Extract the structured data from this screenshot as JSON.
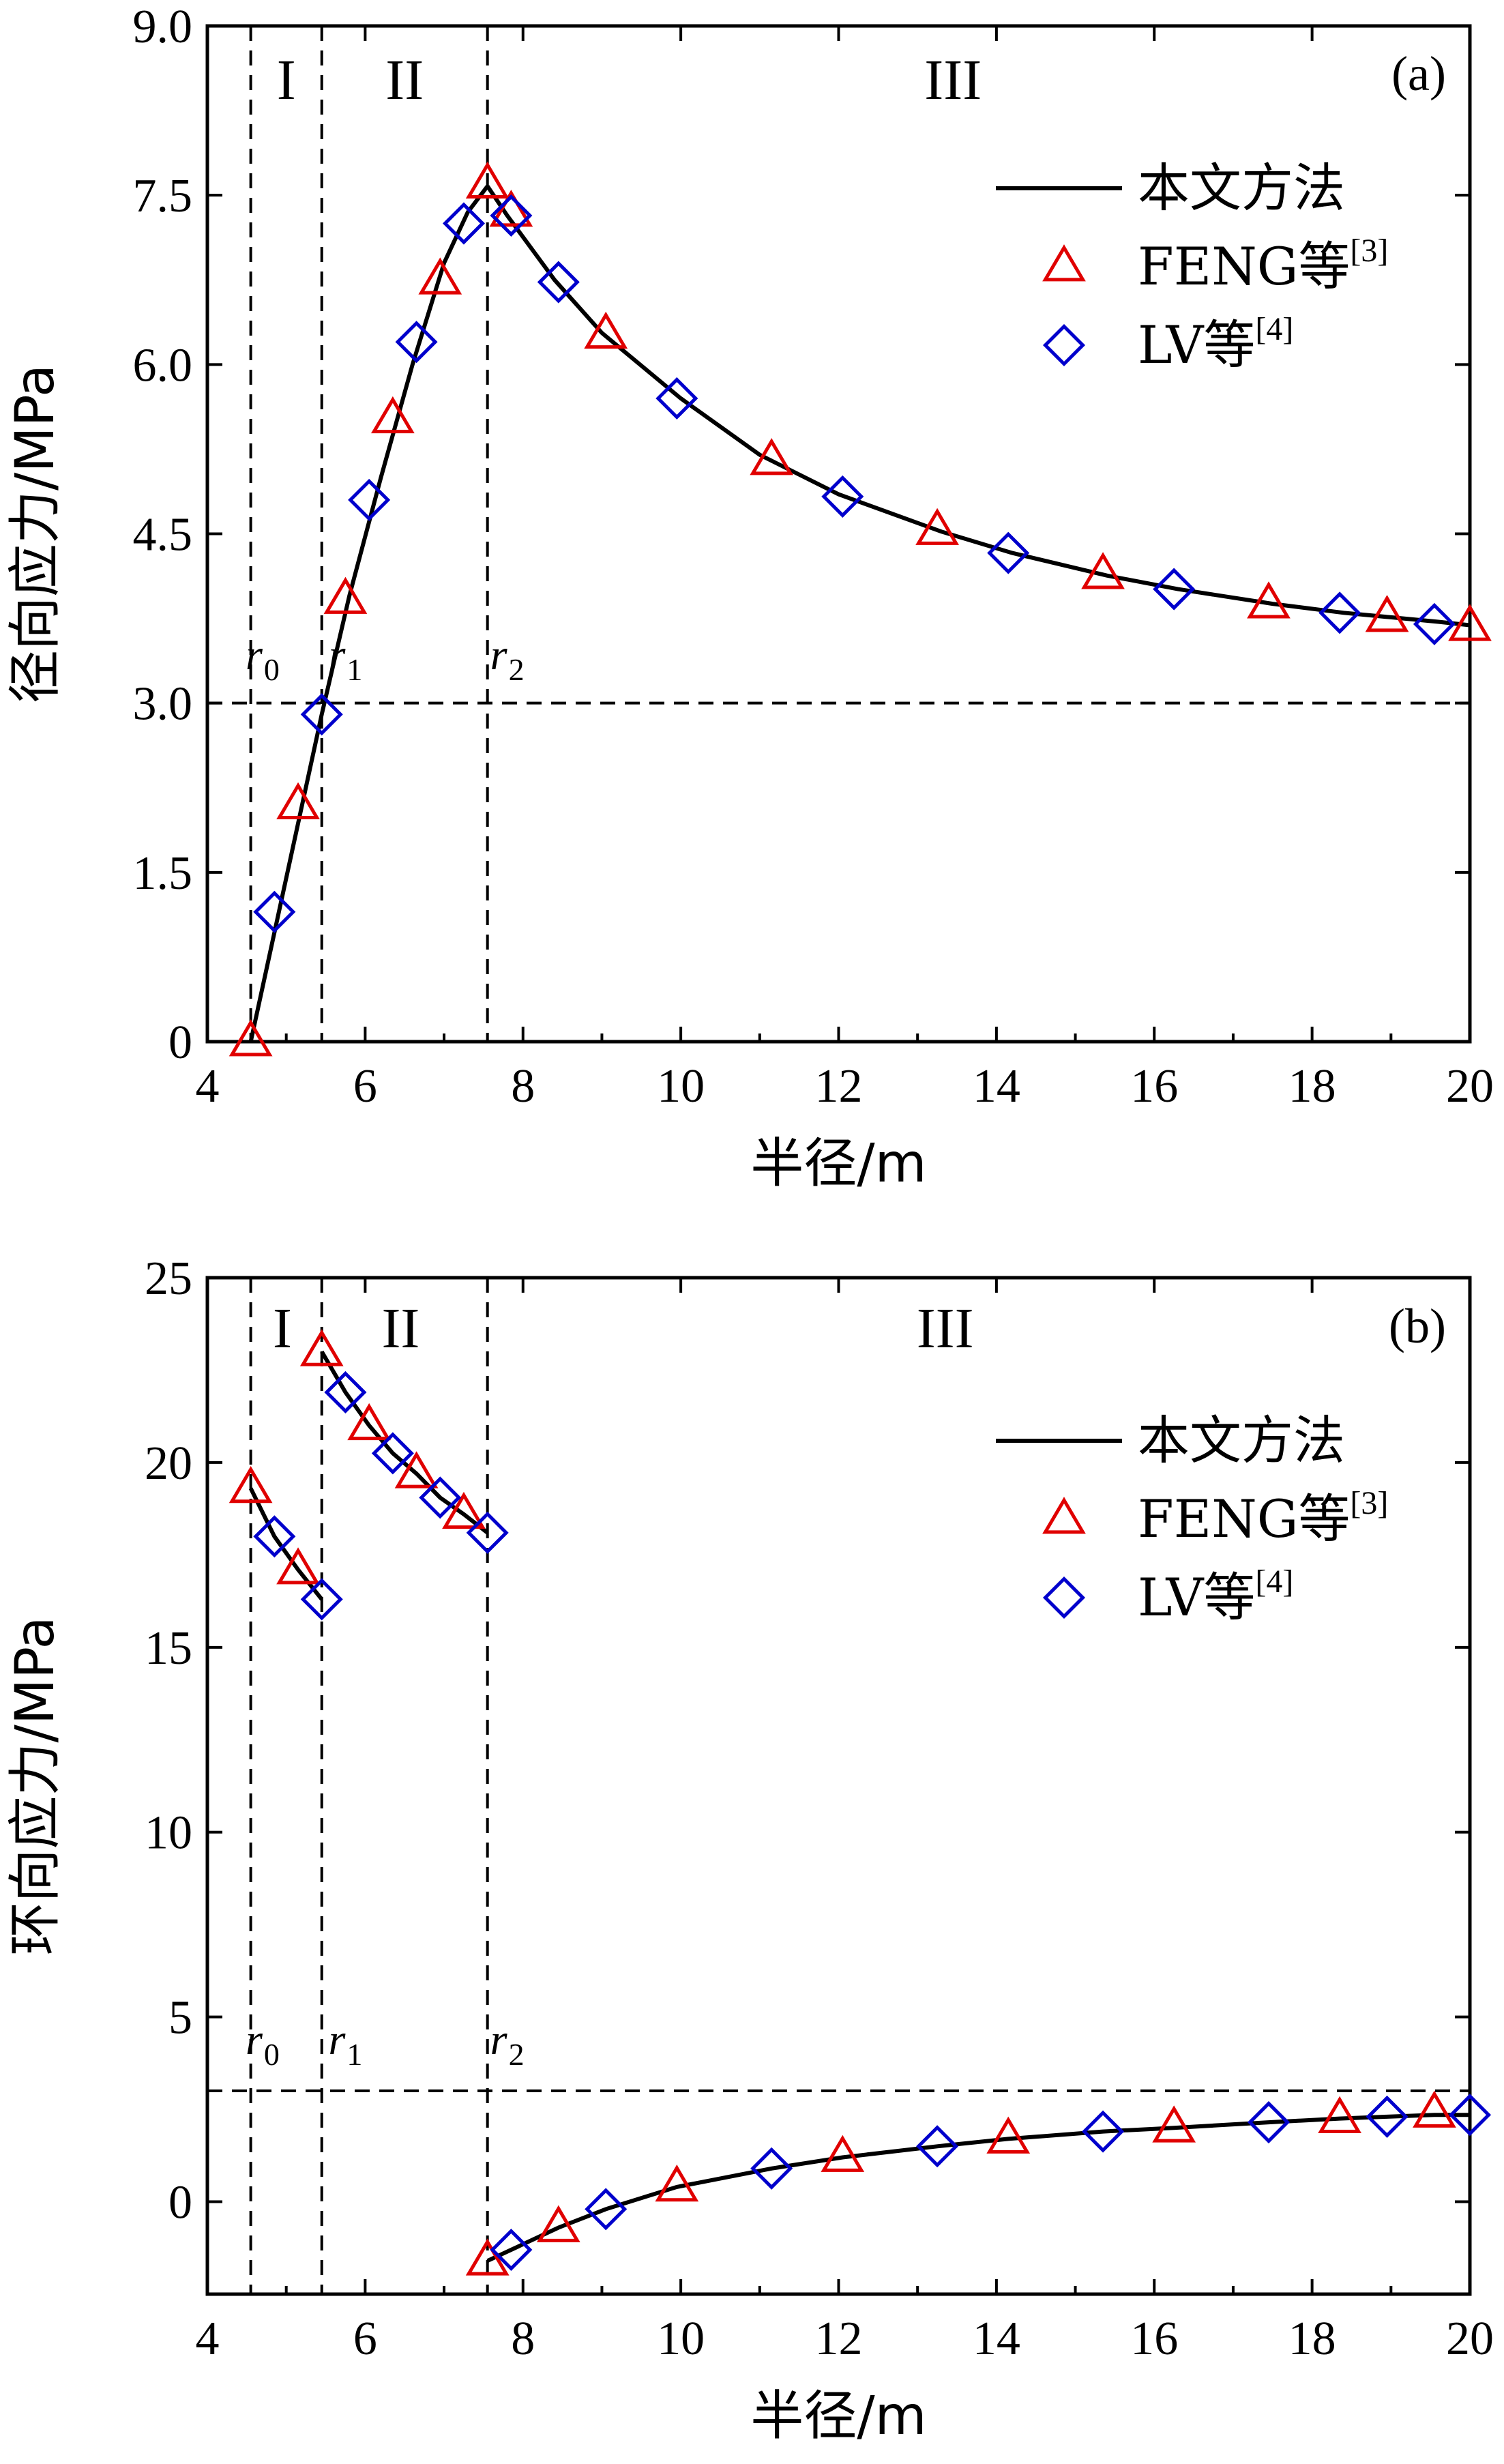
{
  "chart_data": [
    {
      "type": "line",
      "panel_label": "(a)",
      "xlabel": "半径/m",
      "ylabel": "径向应力/MPa",
      "xlim": [
        4,
        20
      ],
      "ylim": [
        0,
        9
      ],
      "x_ticks": [
        4,
        6,
        8,
        10,
        12,
        14,
        16,
        18,
        20
      ],
      "x_tick_labels": [
        "4",
        "6",
        "8",
        "10",
        "12",
        "14",
        "16",
        "18",
        "20"
      ],
      "y_ticks": [
        0,
        1.5,
        3,
        4.5,
        6,
        7.5,
        9
      ],
      "y_tick_labels": [
        "0",
        "1.5",
        "3.0",
        "4.5",
        "6.0",
        "7.5",
        "9.0"
      ],
      "reference_lines": {
        "vertical_x": [
          4.55,
          5.45,
          7.55
        ],
        "horizontal_y": 3.0
      },
      "region_labels": [
        {
          "text": "I",
          "x": 5.0
        },
        {
          "text": "II",
          "x": 6.5
        },
        {
          "text": "III",
          "x": 13.45
        }
      ],
      "radius_labels": [
        {
          "text": "r",
          "sub": "0",
          "x": 4.7
        },
        {
          "text": "r",
          "sub": "1",
          "x": 5.75
        },
        {
          "text": "r",
          "sub": "2",
          "x": 7.8
        }
      ],
      "radius_label_y": 3.3,
      "legend": {
        "position": "top-right",
        "entries": [
          {
            "marker": "line",
            "text": "本文方法",
            "sup": ""
          },
          {
            "marker": "triangle",
            "text": "FENG等",
            "sup": "[3]"
          },
          {
            "marker": "diamond",
            "text": "LV等",
            "sup": "[4]"
          }
        ]
      },
      "series": [
        {
          "marker": "line",
          "segments": [
            {
              "x": [
                4.55,
                5.45,
                5.8,
                6.2,
                6.6,
                7.0,
                7.3,
                7.55
              ],
              "y": [
                0,
                2.9,
                3.95,
                5.0,
                6.0,
                6.9,
                7.35,
                7.58
              ]
            },
            {
              "x": [
                7.55,
                7.8,
                8.4,
                9.0,
                10.0,
                11.0,
                12.0,
                13.3,
                14.2,
                15.4,
                16.3,
                17.5,
                18.4,
                19.0,
                19.6,
                20.0
              ],
              "y": [
                7.58,
                7.32,
                6.75,
                6.28,
                5.7,
                5.2,
                4.85,
                4.52,
                4.33,
                4.13,
                4.01,
                3.88,
                3.8,
                3.76,
                3.72,
                3.69
              ]
            }
          ]
        },
        {
          "marker": "triangle",
          "x": [
            4.55,
            5.15,
            5.75,
            6.35,
            6.95,
            7.55,
            7.85,
            9.05,
            11.15,
            13.25,
            15.35,
            17.45,
            18.95,
            20.0
          ],
          "y": [
            0,
            2.1,
            3.92,
            5.52,
            6.75,
            7.6,
            7.35,
            6.27,
            5.15,
            4.53,
            4.14,
            3.88,
            3.76,
            3.68
          ]
        },
        {
          "marker": "diamond",
          "x": [
            4.85,
            5.45,
            6.05,
            6.65,
            7.25,
            7.85,
            8.45,
            9.95,
            12.05,
            14.15,
            16.25,
            18.35,
            19.55
          ],
          "y": [
            1.15,
            2.9,
            4.8,
            6.2,
            7.25,
            7.32,
            6.73,
            5.7,
            4.83,
            4.33,
            4.01,
            3.8,
            3.7
          ]
        }
      ]
    },
    {
      "type": "line",
      "panel_label": "(b)",
      "xlabel": "半径/m",
      "ylabel": "环向应力/MPa",
      "xlim": [
        4,
        20
      ],
      "ylim": [
        -2.5,
        25
      ],
      "x_ticks": [
        4,
        6,
        8,
        10,
        12,
        14,
        16,
        18,
        20
      ],
      "x_tick_labels": [
        "4",
        "6",
        "8",
        "10",
        "12",
        "14",
        "16",
        "18",
        "20"
      ],
      "y_ticks": [
        0,
        5,
        10,
        15,
        20,
        25
      ],
      "y_tick_labels": [
        "0",
        "5",
        "10",
        "15",
        "20",
        "25"
      ],
      "reference_lines": {
        "vertical_x": [
          4.55,
          5.45,
          7.55
        ],
        "horizontal_y": 3.0
      },
      "region_labels": [
        {
          "text": "I",
          "x": 4.95
        },
        {
          "text": "II",
          "x": 6.45
        },
        {
          "text": "III",
          "x": 13.35
        }
      ],
      "radius_labels": [
        {
          "text": "r",
          "sub": "0",
          "x": 4.7
        },
        {
          "text": "r",
          "sub": "1",
          "x": 5.75
        },
        {
          "text": "r",
          "sub": "2",
          "x": 7.8
        }
      ],
      "radius_label_y": 4.0,
      "legend": {
        "position": "top-right",
        "entries": [
          {
            "marker": "line",
            "text": "本文方法",
            "sup": ""
          },
          {
            "marker": "triangle",
            "text": "FENG等",
            "sup": "[3]"
          },
          {
            "marker": "diamond",
            "text": "LV等",
            "sup": "[4]"
          }
        ]
      },
      "series": [
        {
          "marker": "line",
          "segments": [
            {
              "x": [
                4.55,
                4.85,
                5.15,
                5.45
              ],
              "y": [
                19.3,
                18.0,
                17.1,
                16.3
              ]
            },
            {
              "x": [
                5.45,
                5.75,
                6.05,
                6.35,
                6.65,
                6.95,
                7.25,
                7.55
              ],
              "y": [
                23.0,
                21.9,
                21.0,
                20.25,
                19.7,
                19.05,
                18.6,
                18.1
              ]
            },
            {
              "x": [
                7.55,
                7.85,
                8.45,
                9.05,
                9.95,
                11.15,
                12.05,
                13.25,
                14.15,
                15.35,
                16.25,
                17.45,
                18.35,
                18.95,
                19.55,
                20.0
              ],
              "y": [
                -1.6,
                -1.3,
                -0.7,
                -0.2,
                0.4,
                0.9,
                1.2,
                1.5,
                1.7,
                1.9,
                2.0,
                2.15,
                2.25,
                2.3,
                2.35,
                2.35
              ]
            }
          ]
        },
        {
          "marker": "triangle",
          "x": [
            4.55,
            5.15,
            5.45,
            6.05,
            6.65,
            7.25,
            7.55,
            8.45,
            9.95,
            12.05,
            14.15,
            16.25,
            18.35,
            19.55
          ],
          "y": [
            19.3,
            17.1,
            23.0,
            21.0,
            19.7,
            18.6,
            -1.6,
            -0.7,
            0.4,
            1.2,
            1.7,
            2.0,
            2.25,
            2.4
          ]
        },
        {
          "marker": "diamond",
          "x": [
            4.85,
            5.45,
            5.75,
            6.35,
            6.95,
            7.55,
            7.85,
            9.05,
            11.15,
            13.25,
            15.35,
            17.45,
            18.95,
            20.0
          ],
          "y": [
            18.0,
            16.3,
            21.9,
            20.25,
            19.05,
            18.1,
            -1.3,
            -0.2,
            0.9,
            1.5,
            1.9,
            2.15,
            2.3,
            2.35
          ]
        }
      ]
    }
  ]
}
